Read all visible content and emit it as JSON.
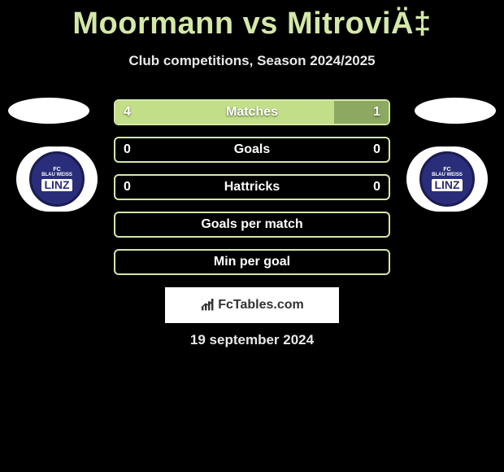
{
  "header": {
    "title": "Moormann vs MitroviÄ‡",
    "subtitle": "Club competitions, Season 2024/2025"
  },
  "colors": {
    "bar_border": "#d4e8a8",
    "bar_left": "#c3de88",
    "bar_right": "#8da860",
    "title": "#d4e8a8",
    "text": "#e8e8e8",
    "background": "#000000",
    "badge_bg": "#2a2d7a",
    "badge_border": "#1a1c50"
  },
  "badges": {
    "left": {
      "top": "FC",
      "mid": "BLAU WEISS",
      "main": "LINZ"
    },
    "right": {
      "top": "FC",
      "mid": "BLAU WEISS",
      "main": "LINZ"
    }
  },
  "stats": [
    {
      "label": "Matches",
      "left_val": "4",
      "right_val": "1",
      "left_pct": 80,
      "right_pct": 20
    },
    {
      "label": "Goals",
      "left_val": "0",
      "right_val": "0",
      "left_pct": 0,
      "right_pct": 0
    },
    {
      "label": "Hattricks",
      "left_val": "0",
      "right_val": "0",
      "left_pct": 0,
      "right_pct": 0
    },
    {
      "label": "Goals per match",
      "left_val": "",
      "right_val": "",
      "left_pct": 0,
      "right_pct": 0
    },
    {
      "label": "Min per goal",
      "left_val": "",
      "right_val": "",
      "left_pct": 0,
      "right_pct": 0
    }
  ],
  "brand": {
    "text": "FcTables.com"
  },
  "date": "19 september 2024"
}
